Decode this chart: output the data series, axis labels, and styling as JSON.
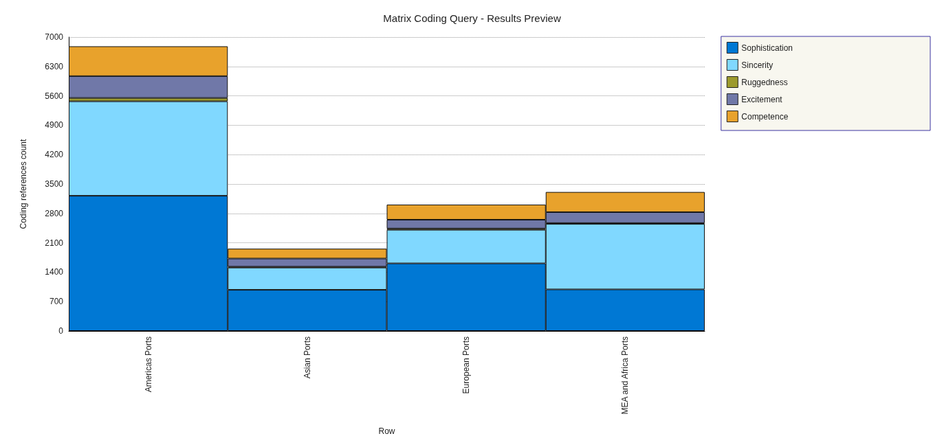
{
  "chart_data": {
    "type": "bar",
    "title": "Matrix Coding Query - Results Preview",
    "xlabel": "Row",
    "ylabel": "Coding references count",
    "stacked": true,
    "categories": [
      "Americas Ports",
      "Asian Ports",
      "European Ports",
      "MEA and Africa Ports"
    ],
    "series": [
      {
        "name": "Sophistication",
        "color": "#0078d4",
        "values": [
          3220,
          980,
          1610,
          990
        ]
      },
      {
        "name": "Sincerity",
        "color": "#80d8ff",
        "values": [
          2250,
          530,
          800,
          1560
        ]
      },
      {
        "name": "Ruggedness",
        "color": "#9c9a2e",
        "values": [
          80,
          20,
          30,
          20
        ]
      },
      {
        "name": "Excitement",
        "color": "#7078a8",
        "values": [
          520,
          195,
          210,
          260
        ]
      },
      {
        "name": "Competence",
        "color": "#e8a22c",
        "values": [
          710,
          235,
          360,
          480
        ]
      }
    ],
    "ylim": [
      0,
      7000
    ],
    "yticks": [
      0,
      700,
      1400,
      2100,
      2800,
      3500,
      4200,
      4900,
      5600,
      6300,
      7000
    ],
    "grid": "y",
    "legend": "top right"
  }
}
